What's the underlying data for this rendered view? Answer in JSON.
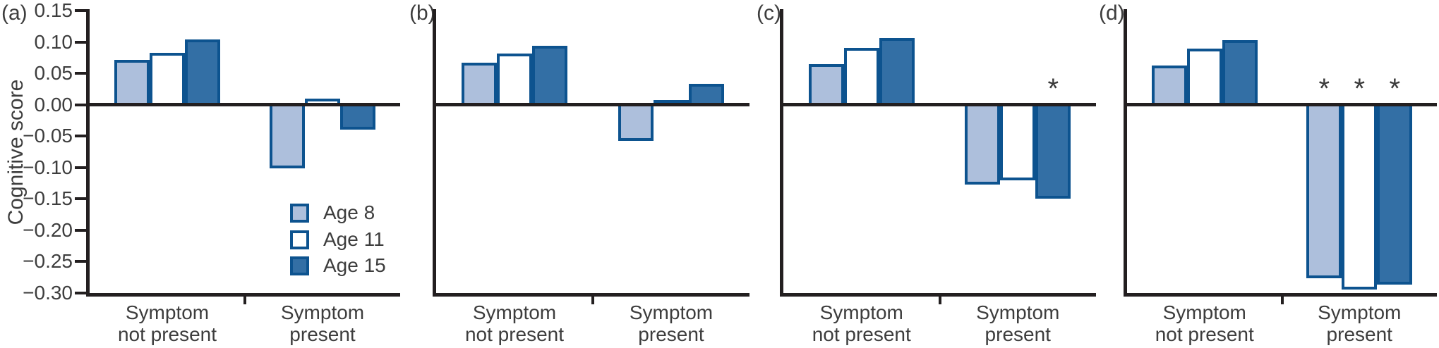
{
  "figure_title": "",
  "ylabel": "Cognitive score",
  "sig_marker": "*",
  "colors": {
    "age8_fill": "#adbfdc",
    "age11_fill": "#ffffff",
    "age15_fill": "#336fa5",
    "bar_border": "#0d538f",
    "axis_line": "#231f20",
    "text": "#3d3d3d"
  },
  "legend": {
    "items": [
      {
        "label": "Age 8",
        "fill": "#adbfdc"
      },
      {
        "label": "Age 11",
        "fill": "#ffffff"
      },
      {
        "label": "Age 15",
        "fill": "#336fa5"
      }
    ]
  },
  "chart_data": {
    "type": "bar",
    "ylabel": "Cognitive score",
    "ylim": [
      -0.3,
      0.15
    ],
    "yticks": [
      0.15,
      0.1,
      0.05,
      0.0,
      -0.05,
      -0.1,
      -0.15,
      -0.2,
      -0.25,
      -0.3
    ],
    "ytick_labels": [
      "0.15",
      "0.10",
      "0.05",
      "0.00",
      "−0.05",
      "−0.10",
      "−0.15",
      "−0.20",
      "−0.25",
      "−0.30"
    ],
    "grid": false,
    "legend_position": "inside-panel-a",
    "series_names": [
      "Age 8",
      "Age 11",
      "Age 15"
    ],
    "categories": [
      "Symptom not present",
      "Symptom present"
    ],
    "category_label_lines": [
      [
        "Symptom",
        "not present"
      ],
      [
        "Symptom",
        "present"
      ]
    ],
    "panels": [
      {
        "label": "(a)",
        "groups": [
          {
            "category": "Symptom not present",
            "values": [
              0.072,
              0.083,
              0.104
            ],
            "sig": [
              false,
              false,
              false
            ]
          },
          {
            "category": "Symptom present",
            "values": [
              -0.101,
              0.01,
              -0.04
            ],
            "sig": [
              false,
              false,
              false
            ]
          }
        ]
      },
      {
        "label": "(b)",
        "groups": [
          {
            "category": "Symptom not present",
            "values": [
              0.067,
              0.082,
              0.094
            ],
            "sig": [
              false,
              false,
              false
            ]
          },
          {
            "category": "Symptom present",
            "values": [
              -0.058,
              0.008,
              0.033
            ],
            "sig": [
              false,
              false,
              false
            ]
          }
        ]
      },
      {
        "label": "(c)",
        "groups": [
          {
            "category": "Symptom not present",
            "values": [
              0.065,
              0.09,
              0.106
            ],
            "sig": [
              false,
              false,
              false
            ]
          },
          {
            "category": "Symptom present",
            "values": [
              -0.127,
              -0.12,
              -0.15
            ],
            "sig": [
              false,
              false,
              true
            ]
          }
        ]
      },
      {
        "label": "(d)",
        "groups": [
          {
            "category": "Symptom not present",
            "values": [
              0.063,
              0.089,
              0.103
            ],
            "sig": [
              false,
              false,
              false
            ]
          },
          {
            "category": "Symptom present",
            "values": [
              -0.277,
              -0.294,
              -0.287
            ],
            "sig": [
              true,
              true,
              true
            ]
          }
        ]
      }
    ]
  }
}
